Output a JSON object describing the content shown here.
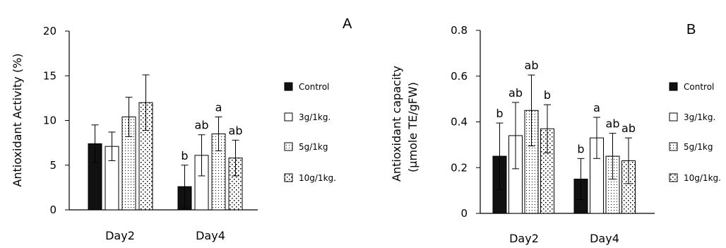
{
  "chart_data": [
    {
      "type": "bar",
      "panel": "A",
      "ylabel": "Antioxidant Activity (%)",
      "ylim": [
        0,
        20
      ],
      "yticks": [
        "0",
        "5",
        "10",
        "15",
        "20"
      ],
      "categories": [
        "Day2",
        "Day4"
      ],
      "legend_position": "right",
      "series": [
        {
          "name": "Control",
          "pattern": "solid",
          "values": [
            7.4,
            2.6
          ],
          "errors": [
            2.1,
            2.4
          ],
          "labels": [
            "",
            "b"
          ]
        },
        {
          "name": "3g/1kg.",
          "pattern": "open",
          "values": [
            7.1,
            6.1
          ],
          "errors": [
            1.6,
            2.3
          ],
          "labels": [
            "",
            "ab"
          ]
        },
        {
          "name": "5g/1kg",
          "pattern": "fine-dots",
          "values": [
            10.4,
            8.5
          ],
          "errors": [
            2.2,
            1.9
          ],
          "labels": [
            "",
            "a"
          ]
        },
        {
          "name": "10g/1kg.",
          "pattern": "coarse-dots",
          "values": [
            12.0,
            5.8
          ],
          "errors": [
            3.1,
            2.0
          ],
          "labels": [
            "",
            "ab"
          ]
        }
      ]
    },
    {
      "type": "bar",
      "panel": "B",
      "ylabel": "Antioxidant capacity",
      "ylabel2": "(µmole TE/gFW)",
      "ylim": [
        0,
        0.8
      ],
      "yticks": [
        "0",
        "0.2",
        "0.4",
        "0.6",
        "0.8"
      ],
      "categories": [
        "Day2",
        "Day4"
      ],
      "legend_position": "right",
      "series": [
        {
          "name": "Control",
          "pattern": "solid",
          "values": [
            0.25,
            0.15
          ],
          "errors": [
            0.145,
            0.09
          ],
          "labels": [
            "b",
            "b"
          ]
        },
        {
          "name": "3g/1kg.",
          "pattern": "open",
          "values": [
            0.34,
            0.33
          ],
          "errors": [
            0.145,
            0.09
          ],
          "labels": [
            "ab",
            "a"
          ]
        },
        {
          "name": "5g/1kg",
          "pattern": "fine-dots",
          "values": [
            0.45,
            0.25
          ],
          "errors": [
            0.155,
            0.1
          ],
          "labels": [
            "ab",
            "ab"
          ]
        },
        {
          "name": "10g/1kg.",
          "pattern": "coarse-dots",
          "values": [
            0.37,
            0.23
          ],
          "errors": [
            0.105,
            0.1
          ],
          "labels": [
            "b",
            "ab"
          ]
        }
      ]
    }
  ],
  "colors": {
    "bar_fill": "#111111",
    "axis": "#000000",
    "background": "#ffffff"
  }
}
